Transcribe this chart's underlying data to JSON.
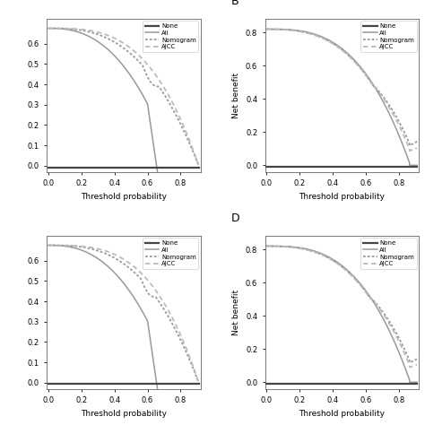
{
  "background_color": "#ffffff",
  "panel_A": {
    "ylim": [
      -0.03,
      0.72
    ],
    "xlim": [
      -0.01,
      0.92
    ],
    "yticks": [
      0.0,
      0.1,
      0.2,
      0.3,
      0.4,
      0.5,
      0.6
    ],
    "xticks": [
      0.0,
      0.2,
      0.4,
      0.6,
      0.8
    ],
    "ylabel": "",
    "xlabel": "Threshold probability",
    "has_ylabel": false
  },
  "panel_B": {
    "ylim": [
      -0.04,
      0.88
    ],
    "xlim": [
      -0.01,
      0.92
    ],
    "yticks": [
      0.0,
      0.2,
      0.4,
      0.6,
      0.8
    ],
    "xticks": [
      0.0,
      0.2,
      0.4,
      0.6,
      0.8
    ],
    "ylabel": "Net benefit",
    "xlabel": "Threshold probability",
    "has_ylabel": true
  },
  "panel_C": {
    "ylim": [
      -0.03,
      0.72
    ],
    "xlim": [
      -0.01,
      0.92
    ],
    "yticks": [
      0.0,
      0.1,
      0.2,
      0.3,
      0.4,
      0.5,
      0.6
    ],
    "xticks": [
      0.0,
      0.2,
      0.4,
      0.6,
      0.8
    ],
    "ylabel": "",
    "xlabel": "Threshold probability",
    "has_ylabel": false
  },
  "panel_D": {
    "ylim": [
      -0.04,
      0.88
    ],
    "xlim": [
      -0.01,
      0.92
    ],
    "yticks": [
      0.0,
      0.2,
      0.4,
      0.6,
      0.8
    ],
    "xticks": [
      0.0,
      0.2,
      0.4,
      0.6,
      0.8
    ],
    "ylabel": "Net benefit",
    "xlabel": "Threshold probability",
    "has_ylabel": true
  },
  "legend_entries": [
    "None",
    "All",
    "Nomogram",
    "AJCC"
  ],
  "color_none": "#444444",
  "color_all": "#999999",
  "color_nomo": "#999999",
  "color_ajcc": "#bbbbbb",
  "lw_none": 1.6,
  "lw_all": 1.1,
  "lw_nomo": 1.3,
  "lw_ajcc": 1.3
}
